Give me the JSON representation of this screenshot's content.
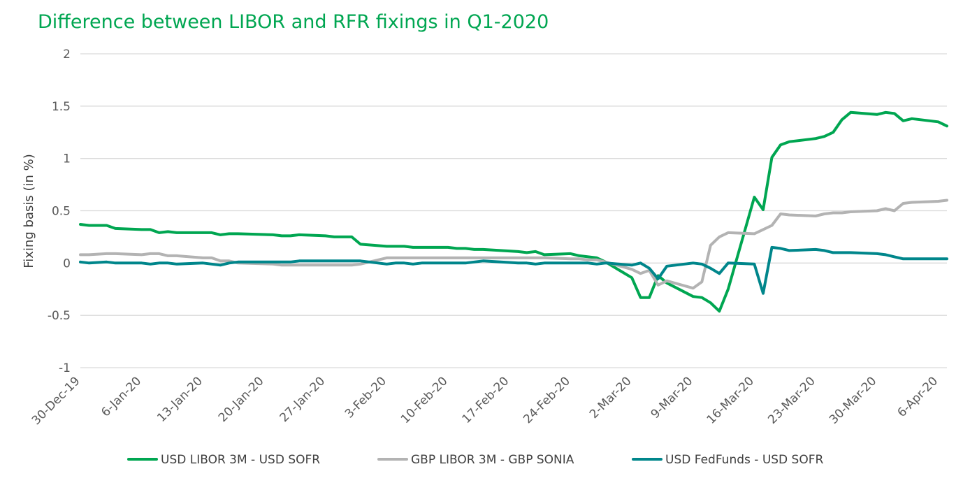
{
  "chart_data": {
    "type": "line",
    "title": "Difference between LIBOR and RFR fixings in Q1-2020",
    "ylabel": "Fixing basis (in %)",
    "xlabel": "",
    "ylim": [
      -1,
      2
    ],
    "yticks": [
      "2",
      "1.5",
      "1",
      "0.5",
      "0",
      "-0.5",
      "-1"
    ],
    "ytick_values": [
      2,
      1.5,
      1,
      0.5,
      0,
      -0.5,
      -1
    ],
    "grid": true,
    "legend_position": "bottom",
    "xrange": [
      "2019-12-30",
      "2020-04-07"
    ],
    "xticks": [
      {
        "date": "2019-12-30",
        "label": "30-Dec-19"
      },
      {
        "date": "2020-01-06",
        "label": "6-Jan-20"
      },
      {
        "date": "2020-01-13",
        "label": "13-Jan-20"
      },
      {
        "date": "2020-01-20",
        "label": "20-Jan-20"
      },
      {
        "date": "2020-01-27",
        "label": "27-Jan-20"
      },
      {
        "date": "2020-02-03",
        "label": "3-Feb-20"
      },
      {
        "date": "2020-02-10",
        "label": "10-Feb-20"
      },
      {
        "date": "2020-02-17",
        "label": "17-Feb-20"
      },
      {
        "date": "2020-02-24",
        "label": "24-Feb-20"
      },
      {
        "date": "2020-03-02",
        "label": "2-Mar-20"
      },
      {
        "date": "2020-03-09",
        "label": "9-Mar-20"
      },
      {
        "date": "2020-03-16",
        "label": "16-Mar-20"
      },
      {
        "date": "2020-03-23",
        "label": "23-Mar-20"
      },
      {
        "date": "2020-03-30",
        "label": "30-Mar-20"
      },
      {
        "date": "2020-04-06",
        "label": "6-Apr-20"
      }
    ],
    "series": [
      {
        "name": "USD LIBOR 3M - USD SOFR",
        "color": "#00a651",
        "points": [
          [
            "2019-12-30",
            0.37
          ],
          [
            "2019-12-31",
            0.36
          ],
          [
            "2020-01-02",
            0.36
          ],
          [
            "2020-01-03",
            0.33
          ],
          [
            "2020-01-06",
            0.32
          ],
          [
            "2020-01-07",
            0.32
          ],
          [
            "2020-01-08",
            0.29
          ],
          [
            "2020-01-09",
            0.3
          ],
          [
            "2020-01-10",
            0.29
          ],
          [
            "2020-01-13",
            0.29
          ],
          [
            "2020-01-14",
            0.29
          ],
          [
            "2020-01-15",
            0.27
          ],
          [
            "2020-01-16",
            0.28
          ],
          [
            "2020-01-17",
            0.28
          ],
          [
            "2020-01-21",
            0.27
          ],
          [
            "2020-01-22",
            0.26
          ],
          [
            "2020-01-23",
            0.26
          ],
          [
            "2020-01-24",
            0.27
          ],
          [
            "2020-01-27",
            0.26
          ],
          [
            "2020-01-28",
            0.25
          ],
          [
            "2020-01-29",
            0.25
          ],
          [
            "2020-01-30",
            0.25
          ],
          [
            "2020-01-31",
            0.18
          ],
          [
            "2020-02-03",
            0.16
          ],
          [
            "2020-02-04",
            0.16
          ],
          [
            "2020-02-05",
            0.16
          ],
          [
            "2020-02-06",
            0.15
          ],
          [
            "2020-02-07",
            0.15
          ],
          [
            "2020-02-10",
            0.15
          ],
          [
            "2020-02-11",
            0.14
          ],
          [
            "2020-02-12",
            0.14
          ],
          [
            "2020-02-13",
            0.13
          ],
          [
            "2020-02-14",
            0.13
          ],
          [
            "2020-02-18",
            0.11
          ],
          [
            "2020-02-19",
            0.1
          ],
          [
            "2020-02-20",
            0.11
          ],
          [
            "2020-02-21",
            0.08
          ],
          [
            "2020-02-24",
            0.09
          ],
          [
            "2020-02-25",
            0.07
          ],
          [
            "2020-02-26",
            0.06
          ],
          [
            "2020-02-27",
            0.05
          ],
          [
            "2020-02-28",
            0.01
          ],
          [
            "2020-03-02",
            -0.14
          ],
          [
            "2020-03-03",
            -0.33
          ],
          [
            "2020-03-04",
            -0.33
          ],
          [
            "2020-03-05",
            -0.12
          ],
          [
            "2020-03-06",
            -0.19
          ],
          [
            "2020-03-09",
            -0.32
          ],
          [
            "2020-03-10",
            -0.33
          ],
          [
            "2020-03-11",
            -0.38
          ],
          [
            "2020-03-12",
            -0.46
          ],
          [
            "2020-03-13",
            -0.25
          ],
          [
            "2020-03-16",
            0.63
          ],
          [
            "2020-03-17",
            0.51
          ],
          [
            "2020-03-18",
            1.01
          ],
          [
            "2020-03-19",
            1.13
          ],
          [
            "2020-03-20",
            1.16
          ],
          [
            "2020-03-23",
            1.19
          ],
          [
            "2020-03-24",
            1.21
          ],
          [
            "2020-03-25",
            1.25
          ],
          [
            "2020-03-26",
            1.37
          ],
          [
            "2020-03-27",
            1.44
          ],
          [
            "2020-03-30",
            1.42
          ],
          [
            "2020-03-31",
            1.44
          ],
          [
            "2020-04-01",
            1.43
          ],
          [
            "2020-04-02",
            1.36
          ],
          [
            "2020-04-03",
            1.38
          ],
          [
            "2020-04-06",
            1.35
          ],
          [
            "2020-04-07",
            1.31
          ]
        ]
      },
      {
        "name": "GBP LIBOR 3M - GBP SONIA",
        "color": "#b3b3b3",
        "points": [
          [
            "2019-12-30",
            0.08
          ],
          [
            "2019-12-31",
            0.08
          ],
          [
            "2020-01-02",
            0.09
          ],
          [
            "2020-01-03",
            0.09
          ],
          [
            "2020-01-06",
            0.08
          ],
          [
            "2020-01-07",
            0.09
          ],
          [
            "2020-01-08",
            0.09
          ],
          [
            "2020-01-09",
            0.07
          ],
          [
            "2020-01-10",
            0.07
          ],
          [
            "2020-01-13",
            0.05
          ],
          [
            "2020-01-14",
            0.05
          ],
          [
            "2020-01-15",
            0.02
          ],
          [
            "2020-01-16",
            0.02
          ],
          [
            "2020-01-17",
            0.0
          ],
          [
            "2020-01-21",
            -0.01
          ],
          [
            "2020-01-22",
            -0.02
          ],
          [
            "2020-01-23",
            -0.02
          ],
          [
            "2020-01-24",
            -0.02
          ],
          [
            "2020-01-27",
            -0.02
          ],
          [
            "2020-01-28",
            -0.02
          ],
          [
            "2020-01-29",
            -0.02
          ],
          [
            "2020-01-30",
            -0.02
          ],
          [
            "2020-01-31",
            -0.01
          ],
          [
            "2020-02-03",
            0.05
          ],
          [
            "2020-02-04",
            0.05
          ],
          [
            "2020-02-05",
            0.05
          ],
          [
            "2020-02-06",
            0.05
          ],
          [
            "2020-02-07",
            0.05
          ],
          [
            "2020-02-10",
            0.05
          ],
          [
            "2020-02-11",
            0.05
          ],
          [
            "2020-02-12",
            0.05
          ],
          [
            "2020-02-13",
            0.05
          ],
          [
            "2020-02-14",
            0.05
          ],
          [
            "2020-02-18",
            0.05
          ],
          [
            "2020-02-19",
            0.05
          ],
          [
            "2020-02-20",
            0.05
          ],
          [
            "2020-02-21",
            0.05
          ],
          [
            "2020-02-24",
            0.04
          ],
          [
            "2020-02-25",
            0.04
          ],
          [
            "2020-02-26",
            0.03
          ],
          [
            "2020-02-27",
            0.03
          ],
          [
            "2020-02-28",
            0.01
          ],
          [
            "2020-03-02",
            -0.06
          ],
          [
            "2020-03-03",
            -0.1
          ],
          [
            "2020-03-04",
            -0.07
          ],
          [
            "2020-03-05",
            -0.21
          ],
          [
            "2020-03-06",
            -0.17
          ],
          [
            "2020-03-09",
            -0.24
          ],
          [
            "2020-03-10",
            -0.18
          ],
          [
            "2020-03-11",
            0.17
          ],
          [
            "2020-03-12",
            0.25
          ],
          [
            "2020-03-13",
            0.29
          ],
          [
            "2020-03-16",
            0.28
          ],
          [
            "2020-03-17",
            0.32
          ],
          [
            "2020-03-18",
            0.36
          ],
          [
            "2020-03-19",
            0.47
          ],
          [
            "2020-03-20",
            0.46
          ],
          [
            "2020-03-23",
            0.45
          ],
          [
            "2020-03-24",
            0.47
          ],
          [
            "2020-03-25",
            0.48
          ],
          [
            "2020-03-26",
            0.48
          ],
          [
            "2020-03-27",
            0.49
          ],
          [
            "2020-03-30",
            0.5
          ],
          [
            "2020-03-31",
            0.52
          ],
          [
            "2020-04-01",
            0.5
          ],
          [
            "2020-04-02",
            0.57
          ],
          [
            "2020-04-03",
            0.58
          ],
          [
            "2020-04-06",
            0.59
          ],
          [
            "2020-04-07",
            0.6
          ]
        ]
      },
      {
        "name": "USD FedFunds - USD SOFR",
        "color": "#00868b",
        "points": [
          [
            "2019-12-30",
            0.01
          ],
          [
            "2019-12-31",
            0.0
          ],
          [
            "2020-01-02",
            0.01
          ],
          [
            "2020-01-03",
            0.0
          ],
          [
            "2020-01-06",
            0.0
          ],
          [
            "2020-01-07",
            -0.01
          ],
          [
            "2020-01-08",
            0.0
          ],
          [
            "2020-01-09",
            0.0
          ],
          [
            "2020-01-10",
            -0.01
          ],
          [
            "2020-01-13",
            0.0
          ],
          [
            "2020-01-14",
            -0.01
          ],
          [
            "2020-01-15",
            -0.02
          ],
          [
            "2020-01-16",
            0.0
          ],
          [
            "2020-01-17",
            0.01
          ],
          [
            "2020-01-21",
            0.01
          ],
          [
            "2020-01-22",
            0.01
          ],
          [
            "2020-01-23",
            0.01
          ],
          [
            "2020-01-24",
            0.02
          ],
          [
            "2020-01-27",
            0.02
          ],
          [
            "2020-01-28",
            0.02
          ],
          [
            "2020-01-29",
            0.02
          ],
          [
            "2020-01-30",
            0.02
          ],
          [
            "2020-01-31",
            0.02
          ],
          [
            "2020-02-03",
            -0.01
          ],
          [
            "2020-02-04",
            0.0
          ],
          [
            "2020-02-05",
            0.0
          ],
          [
            "2020-02-06",
            -0.01
          ],
          [
            "2020-02-07",
            0.0
          ],
          [
            "2020-02-10",
            0.0
          ],
          [
            "2020-02-11",
            0.0
          ],
          [
            "2020-02-12",
            0.0
          ],
          [
            "2020-02-13",
            0.01
          ],
          [
            "2020-02-14",
            0.02
          ],
          [
            "2020-02-18",
            0.0
          ],
          [
            "2020-02-19",
            0.0
          ],
          [
            "2020-02-20",
            -0.01
          ],
          [
            "2020-02-21",
            0.0
          ],
          [
            "2020-02-24",
            0.0
          ],
          [
            "2020-02-25",
            0.0
          ],
          [
            "2020-02-26",
            0.0
          ],
          [
            "2020-02-27",
            -0.01
          ],
          [
            "2020-02-28",
            0.0
          ],
          [
            "2020-03-02",
            -0.02
          ],
          [
            "2020-03-03",
            0.0
          ],
          [
            "2020-03-04",
            -0.05
          ],
          [
            "2020-03-05",
            -0.15
          ],
          [
            "2020-03-06",
            -0.03
          ],
          [
            "2020-03-09",
            0.0
          ],
          [
            "2020-03-10",
            -0.01
          ],
          [
            "2020-03-11",
            -0.05
          ],
          [
            "2020-03-12",
            -0.1
          ],
          [
            "2020-03-13",
            0.0
          ],
          [
            "2020-03-16",
            -0.01
          ],
          [
            "2020-03-17",
            -0.29
          ],
          [
            "2020-03-18",
            0.15
          ],
          [
            "2020-03-19",
            0.14
          ],
          [
            "2020-03-20",
            0.12
          ],
          [
            "2020-03-23",
            0.13
          ],
          [
            "2020-03-24",
            0.12
          ],
          [
            "2020-03-25",
            0.1
          ],
          [
            "2020-03-26",
            0.1
          ],
          [
            "2020-03-27",
            0.1
          ],
          [
            "2020-03-30",
            0.09
          ],
          [
            "2020-03-31",
            0.08
          ],
          [
            "2020-04-01",
            0.06
          ],
          [
            "2020-04-02",
            0.04
          ],
          [
            "2020-04-03",
            0.04
          ],
          [
            "2020-04-06",
            0.04
          ],
          [
            "2020-04-07",
            0.04
          ]
        ]
      }
    ]
  }
}
